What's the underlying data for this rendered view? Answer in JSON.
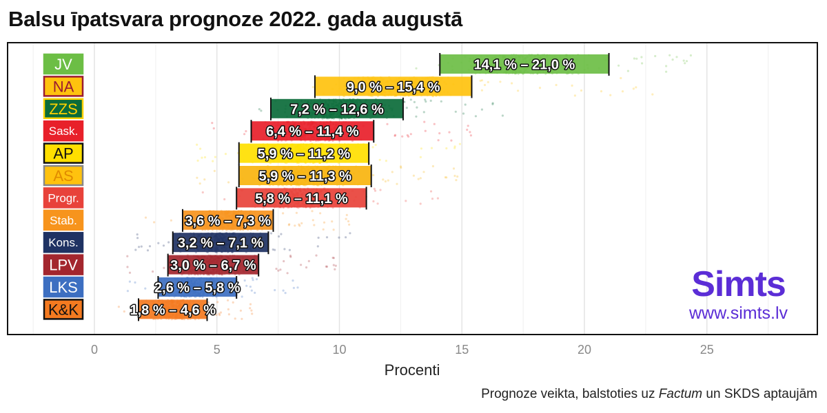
{
  "title": "Balsu īpatsvara prognoze 2022. gada augustā",
  "caption": {
    "before": "Prognoze veikta, balstoties uz ",
    "italic": "Factum",
    "after": " un SKDS aptaujām"
  },
  "brand": {
    "name": "Simts",
    "url": "www.simts.lv",
    "color": "#5b2dd6"
  },
  "chart_data": {
    "type": "scatter",
    "xlabel": "Procenti",
    "xlim": [
      -2.5,
      29.2
    ],
    "xticks": [
      0,
      5,
      10,
      15,
      20,
      25
    ],
    "grid": true,
    "series": [
      {
        "name": "JV",
        "low": 14.1,
        "high": 21.0,
        "label": "14,1 % – 21,0 %",
        "color": "#6cbe45",
        "text_color": "#ffffff",
        "badge_border": "#6cbe45",
        "spread": [
          13.0,
          25.0
        ]
      },
      {
        "name": "NA",
        "low": 9.0,
        "high": 15.4,
        "label": "9,0 % – 15,4 %",
        "color": "#ffc20e",
        "text_color": "#9b1b30",
        "badge_border": "#9b1b30",
        "badge_fill": "#ffc20e",
        "spread": [
          7.5,
          23.0
        ]
      },
      {
        "name": "ZZS",
        "low": 7.2,
        "high": 12.6,
        "label": "7,2 % – 12,6 %",
        "color": "#0b6b3a",
        "text_color": "#ffd200",
        "badge_border": "#ffd200",
        "spread": [
          6.0,
          17.0
        ]
      },
      {
        "name": "Sask.",
        "low": 6.4,
        "high": 11.4,
        "label": "6,4 % – 11,4 %",
        "color": "#e8202a",
        "text_color": "#ffffff",
        "badge_border": "#e8202a",
        "spread": [
          4.5,
          15.5
        ]
      },
      {
        "name": "AP",
        "low": 5.9,
        "high": 11.2,
        "label": "5,9 % – 11,2 %",
        "color": "#ffdf00",
        "text_color": "#111111",
        "badge_border": "#111111",
        "spread": [
          4.0,
          15.0
        ]
      },
      {
        "name": "AS",
        "low": 5.9,
        "high": 11.3,
        "label": "5,9 % – 11,3 %",
        "color": "#f8b40e",
        "text_color": "#e08a00",
        "badge_border": "#888888",
        "badge_fill": "#ffc20e",
        "spread": [
          4.0,
          15.0
        ]
      },
      {
        "name": "Progr.",
        "low": 5.8,
        "high": 11.1,
        "label": "5,8 % – 11,1 %",
        "color": "#e8423a",
        "text_color": "#ffffff",
        "badge_border": "#e8423a",
        "spread": [
          3.8,
          15.0
        ]
      },
      {
        "name": "Stab.",
        "low": 3.6,
        "high": 7.3,
        "label": "3,6 % – 7,3 %",
        "color": "#f7941d",
        "text_color": "#ffffff",
        "badge_border": "#f7941d",
        "spread": [
          1.8,
          10.5
        ]
      },
      {
        "name": "Kons.",
        "low": 3.2,
        "high": 7.1,
        "label": "3,2 % – 7,1 %",
        "color": "#1f3263",
        "text_color": "#ffffff",
        "badge_border": "#1f3263",
        "spread": [
          1.5,
          10.5
        ]
      },
      {
        "name": "LPV",
        "low": 3.0,
        "high": 6.7,
        "label": "3,0 % – 6,7 %",
        "color": "#a3262e",
        "text_color": "#ffffff",
        "badge_border": "#a3262e",
        "spread": [
          1.2,
          10.0
        ]
      },
      {
        "name": "LKS",
        "low": 2.6,
        "high": 5.8,
        "label": "2,6 % – 5,8 %",
        "color": "#3d6fc1",
        "text_color": "#ffffff",
        "badge_border": "#3d6fc1",
        "spread": [
          1.0,
          9.0
        ]
      },
      {
        "name": "K&K",
        "low": 1.8,
        "high": 4.6,
        "label": "1,8 % – 4,6 %",
        "color": "#f47a20",
        "text_color": "#111111",
        "badge_border": "#111111",
        "badge_fill": "#f47a20",
        "spread": [
          0.8,
          6.5
        ]
      }
    ]
  }
}
